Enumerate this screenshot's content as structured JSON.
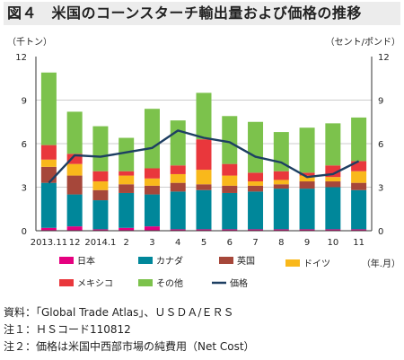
{
  "title": "図４　米国のコーンスターチ輸出量および価格の推移",
  "chart_data": {
    "type": "bar",
    "subtype": "stacked bar + line (dual axis)",
    "ylabel_left": "（千トン）",
    "ylabel_right": "（セント/ポンド）",
    "xlabel": "（年.月）",
    "ylim_left": [
      0,
      12
    ],
    "ylim_right": [
      0,
      12
    ],
    "yticks": [
      "0",
      "3",
      "6",
      "9",
      "12"
    ],
    "categories": [
      "2013.11",
      "12",
      "2014.1",
      "2",
      "3",
      "4",
      "5",
      "6",
      "7",
      "8",
      "9",
      "10",
      "11"
    ],
    "grid": true,
    "legend_position": "bottom",
    "series": [
      {
        "name": "日本",
        "color": "#e5007f",
        "values": [
          0.2,
          0.3,
          0.1,
          0.2,
          0.3,
          0.1,
          0.1,
          0.1,
          0.1,
          0.1,
          0.1,
          0.1,
          0.1
        ]
      },
      {
        "name": "カナダ",
        "color": "#00879a",
        "values": [
          3.1,
          2.2,
          2.0,
          2.4,
          2.2,
          2.6,
          2.7,
          2.5,
          2.6,
          2.8,
          2.8,
          2.9,
          2.7
        ]
      },
      {
        "name": "英国",
        "color": "#a6473a",
        "values": [
          1.1,
          1.3,
          0.7,
          0.6,
          0.6,
          0.6,
          0.4,
          0.5,
          0.4,
          0.3,
          0.5,
          0.4,
          0.5
        ]
      },
      {
        "name": "ドイツ",
        "color": "#f9b81b",
        "values": [
          0.5,
          0.8,
          0.6,
          0.6,
          0.5,
          0.6,
          1.0,
          0.7,
          0.3,
          0.3,
          0.4,
          0.3,
          0.8
        ]
      },
      {
        "name": "メキシコ",
        "color": "#e9373c",
        "values": [
          1.0,
          0.7,
          0.7,
          0.3,
          0.7,
          0.6,
          2.1,
          0.8,
          0.6,
          0.6,
          0.2,
          0.8,
          0.7
        ]
      },
      {
        "name": "その他",
        "color": "#7cc24c",
        "values": [
          5.0,
          2.9,
          3.1,
          2.3,
          4.1,
          3.1,
          3.2,
          3.3,
          3.5,
          2.7,
          3.1,
          2.9,
          3.0
        ]
      }
    ],
    "line_series": {
      "name": "価格",
      "color": "#1d3f62",
      "axis": "right",
      "values": [
        3.3,
        5.2,
        5.1,
        5.4,
        5.7,
        6.9,
        6.4,
        6.1,
        5.1,
        4.7,
        3.7,
        3.9,
        4.8
      ]
    }
  },
  "notes": [
    "資料：「Global Trade Atlas」、ＵＳＤＡ/ＥＲＳ",
    "注１：ＨＳコード110812",
    "注２：価格は米国中西部市場の純費用（Net Cost）"
  ]
}
